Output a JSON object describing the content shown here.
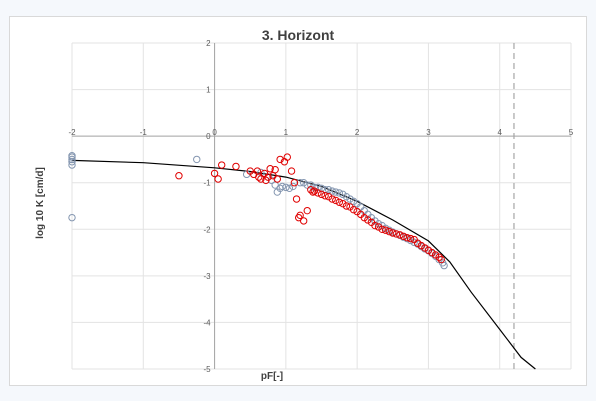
{
  "chart_data": {
    "type": "scatter",
    "title": "3. Horizont",
    "xlabel": "pF[-]",
    "ylabel": "log 10 K [cm/d]",
    "xlim": [
      -2,
      5
    ],
    "ylim": [
      -5,
      2
    ],
    "xticks": [
      -2,
      -1,
      0,
      1,
      2,
      3,
      4,
      5
    ],
    "yticks": [
      -5,
      -4,
      -3,
      -2,
      -1,
      0,
      1,
      2
    ],
    "x_tick_labels": [
      "-2",
      "-1",
      "0",
      "1",
      "2",
      "3",
      "4",
      "5"
    ],
    "y_tick_labels": [
      "-5",
      "-4",
      "-3",
      "-2",
      "-1",
      "0",
      "1",
      "2"
    ],
    "grid": true,
    "reference_line": {
      "x": 4.2,
      "style": "dashed",
      "color": "#a6a6a6"
    },
    "fit_curve": {
      "color": "#000000",
      "points": [
        [
          -2,
          -0.52
        ],
        [
          -1,
          -0.57
        ],
        [
          0,
          -0.68
        ],
        [
          0.5,
          -0.76
        ],
        [
          1,
          -0.88
        ],
        [
          1.5,
          -1.08
        ],
        [
          2,
          -1.4
        ],
        [
          2.5,
          -1.8
        ],
        [
          3,
          -2.25
        ],
        [
          3.3,
          -2.7
        ],
        [
          3.6,
          -3.35
        ],
        [
          4,
          -4.15
        ],
        [
          4.3,
          -4.75
        ],
        [
          4.5,
          -5.0
        ]
      ]
    },
    "series": [
      {
        "color": "#8496b0",
        "marker": "circle-open",
        "points": [
          [
            -2,
            -0.42
          ],
          [
            -2,
            -0.45
          ],
          [
            -2,
            -0.5
          ],
          [
            -2,
            -0.55
          ],
          [
            -2,
            -0.62
          ],
          [
            -2,
            -1.75
          ],
          [
            -0.25,
            -0.5
          ],
          [
            0.45,
            -0.82
          ],
          [
            0.65,
            -0.78
          ],
          [
            0.8,
            -0.95
          ],
          [
            0.85,
            -1.05
          ],
          [
            0.88,
            -1.2
          ],
          [
            0.92,
            -1.12
          ],
          [
            0.95,
            -1.08
          ],
          [
            1.0,
            -1.1
          ],
          [
            1.05,
            -1.12
          ],
          [
            1.1,
            -1.08
          ],
          [
            1.2,
            -1.0
          ],
          [
            1.25,
            -1.0
          ],
          [
            1.3,
            -1.05
          ],
          [
            1.35,
            -1.05
          ],
          [
            1.4,
            -1.1
          ],
          [
            1.45,
            -1.1
          ],
          [
            1.5,
            -1.12
          ],
          [
            1.55,
            -1.15
          ],
          [
            1.6,
            -1.15
          ],
          [
            1.65,
            -1.18
          ],
          [
            1.7,
            -1.2
          ],
          [
            1.75,
            -1.22
          ],
          [
            1.8,
            -1.25
          ],
          [
            1.85,
            -1.3
          ],
          [
            1.9,
            -1.35
          ],
          [
            1.95,
            -1.4
          ],
          [
            2.0,
            -1.45
          ],
          [
            2.05,
            -1.52
          ],
          [
            2.1,
            -1.6
          ],
          [
            2.15,
            -1.68
          ],
          [
            2.2,
            -1.75
          ],
          [
            2.25,
            -1.82
          ],
          [
            2.3,
            -1.88
          ],
          [
            2.35,
            -1.92
          ],
          [
            2.4,
            -1.98
          ],
          [
            2.45,
            -2.02
          ],
          [
            2.5,
            -2.06
          ],
          [
            2.55,
            -2.1
          ],
          [
            2.6,
            -2.13
          ],
          [
            2.65,
            -2.17
          ],
          [
            2.7,
            -2.2
          ],
          [
            2.75,
            -2.24
          ],
          [
            2.8,
            -2.28
          ],
          [
            2.85,
            -2.32
          ],
          [
            2.9,
            -2.37
          ],
          [
            2.95,
            -2.42
          ],
          [
            3.0,
            -2.46
          ],
          [
            3.05,
            -2.52
          ],
          [
            3.1,
            -2.58
          ],
          [
            3.15,
            -2.65
          ],
          [
            3.2,
            -2.72
          ],
          [
            3.22,
            -2.78
          ]
        ]
      },
      {
        "color": "#e00000",
        "marker": "circle-open",
        "points": [
          [
            -0.5,
            -0.85
          ],
          [
            0,
            -0.8
          ],
          [
            0.05,
            -0.92
          ],
          [
            0.1,
            -0.62
          ],
          [
            0.3,
            -0.65
          ],
          [
            0.5,
            -0.75
          ],
          [
            0.55,
            -0.82
          ],
          [
            0.6,
            -0.75
          ],
          [
            0.62,
            -0.88
          ],
          [
            0.65,
            -0.92
          ],
          [
            0.7,
            -0.8
          ],
          [
            0.72,
            -0.95
          ],
          [
            0.75,
            -0.88
          ],
          [
            0.78,
            -0.7
          ],
          [
            0.82,
            -0.85
          ],
          [
            0.85,
            -0.72
          ],
          [
            0.88,
            -0.92
          ],
          [
            0.92,
            -0.5
          ],
          [
            0.98,
            -0.55
          ],
          [
            1.02,
            -0.45
          ],
          [
            1.08,
            -0.75
          ],
          [
            1.12,
            -1.0
          ],
          [
            1.15,
            -1.35
          ],
          [
            1.18,
            -1.75
          ],
          [
            1.2,
            -1.7
          ],
          [
            1.25,
            -1.82
          ],
          [
            1.3,
            -1.6
          ],
          [
            1.35,
            -1.15
          ],
          [
            1.38,
            -1.2
          ],
          [
            1.4,
            -1.18
          ],
          [
            1.45,
            -1.22
          ],
          [
            1.5,
            -1.25
          ],
          [
            1.55,
            -1.28
          ],
          [
            1.6,
            -1.3
          ],
          [
            1.65,
            -1.35
          ],
          [
            1.7,
            -1.38
          ],
          [
            1.75,
            -1.42
          ],
          [
            1.8,
            -1.45
          ],
          [
            1.85,
            -1.5
          ],
          [
            1.9,
            -1.52
          ],
          [
            1.95,
            -1.58
          ],
          [
            2.0,
            -1.62
          ],
          [
            2.05,
            -1.68
          ],
          [
            2.1,
            -1.75
          ],
          [
            2.15,
            -1.8
          ],
          [
            2.2,
            -1.85
          ],
          [
            2.25,
            -1.92
          ],
          [
            2.3,
            -1.95
          ],
          [
            2.35,
            -2.0
          ],
          [
            2.4,
            -2.02
          ],
          [
            2.45,
            -2.05
          ],
          [
            2.5,
            -2.08
          ],
          [
            2.55,
            -2.1
          ],
          [
            2.6,
            -2.12
          ],
          [
            2.65,
            -2.15
          ],
          [
            2.7,
            -2.18
          ],
          [
            2.75,
            -2.2
          ],
          [
            2.8,
            -2.22
          ],
          [
            2.85,
            -2.3
          ],
          [
            2.9,
            -2.35
          ],
          [
            2.95,
            -2.4
          ],
          [
            3.0,
            -2.45
          ],
          [
            3.05,
            -2.5
          ],
          [
            3.1,
            -2.55
          ],
          [
            3.15,
            -2.6
          ],
          [
            3.18,
            -2.65
          ]
        ]
      }
    ]
  }
}
